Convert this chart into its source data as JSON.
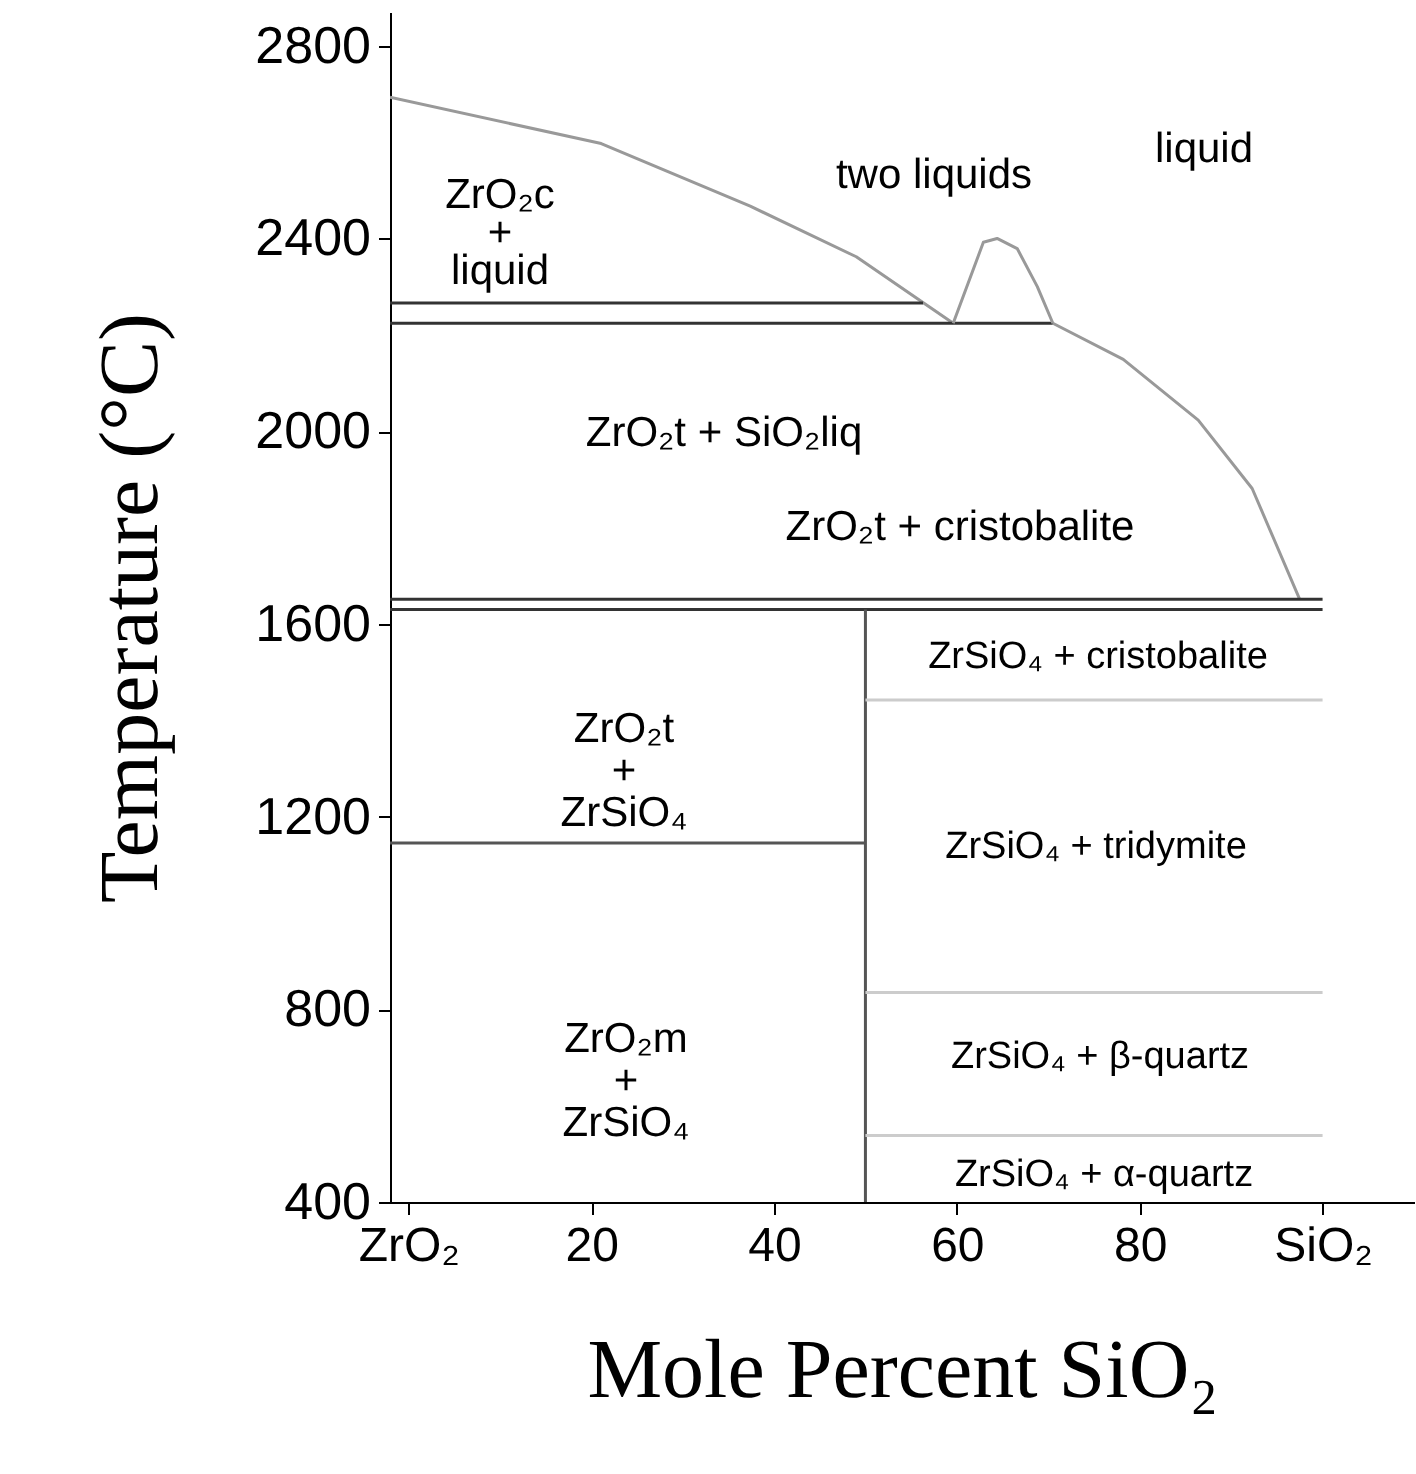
{
  "chart_data": {
    "type": "line",
    "xlabel": "Mole Percent SiO₂",
    "ylabel": "Temperature (°C)",
    "xlim": [
      -2,
      110
    ],
    "ylim": [
      400,
      2870
    ],
    "xticks": [
      {
        "value": 0,
        "label": "ZrO₂"
      },
      20,
      40,
      60,
      80,
      {
        "value": 100,
        "label": "SiO₂"
      }
    ],
    "yticks": [
      400,
      800,
      1200,
      1600,
      2000,
      2400,
      2800
    ],
    "grid": false,
    "series": [
      {
        "color": "#999999",
        "x": [
          -2,
          21.1,
          37.4,
          49,
          59.6
        ],
        "values": [
          2693,
          2597,
          2467,
          2362,
          2224
        ]
      },
      {
        "color": "#333333",
        "x": [
          -2,
          56.3
        ],
        "values": [
          2266,
          2266
        ]
      },
      {
        "color": "#333333",
        "x": [
          -2,
          70.5
        ],
        "values": [
          2224,
          2224
        ]
      },
      {
        "color": "#999999",
        "x": [
          59.6,
          62.9,
          64.4,
          66.6,
          68.8,
          70.5
        ],
        "values": [
          2224,
          2392,
          2400,
          2379,
          2300,
          2224
        ]
      },
      {
        "color": "#999999",
        "x": [
          70.5,
          78.2,
          86.4,
          92.3,
          97.5
        ],
        "values": [
          2224,
          2149,
          2023,
          1881,
          1651
        ]
      },
      {
        "color": "#333333",
        "x": [
          -2,
          100
        ],
        "values": [
          1651,
          1651
        ]
      },
      {
        "color": "#333333",
        "x": [
          -2,
          100
        ],
        "values": [
          1630,
          1630
        ]
      },
      {
        "color": "#555555",
        "x": [
          50,
          50
        ],
        "values": [
          1630,
          400
        ]
      },
      {
        "color": "#555555",
        "x": [
          -2,
          50
        ],
        "values": [
          1145,
          1145
        ]
      },
      {
        "color": "#cccccc",
        "x": [
          50,
          100
        ],
        "values": [
          1442,
          1442
        ]
      },
      {
        "color": "#cccccc",
        "x": [
          50,
          100
        ],
        "values": [
          835,
          835
        ]
      },
      {
        "color": "#cccccc",
        "x": [
          50,
          100
        ],
        "values": [
          538,
          538
        ]
      }
    ],
    "annotations": [
      "ZrO₂c\n+\nliquid",
      "two liquids",
      "liquid",
      "ZrO₂t + SiO₂liq",
      "ZrO₂t + cristobalite",
      "ZrO₂t\n+\nZrSiO₄",
      "ZrO₂m\n+\nZrSiO₄",
      "ZrSiO₄ + cristobalite",
      "ZrSiO₄ + tridymite",
      "ZrSiO₄ + β-quartz",
      "ZrSiO₄ + α-quartz"
    ]
  }
}
